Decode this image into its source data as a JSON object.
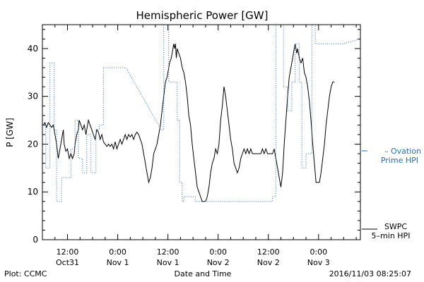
{
  "chart_data": {
    "type": "line",
    "title": "Hemispheric Power [GW]",
    "ylabel": "P [GW]",
    "xlabel": "Date and Time",
    "ylim": [
      0,
      45
    ],
    "y_ticks": [
      0,
      10,
      20,
      30,
      40
    ],
    "x_unit": "hours since 2016-10-31 00:00 UT",
    "xlim": [
      6,
      82
    ],
    "x_tick_labels": [
      {
        "x": 12,
        "line1": "12:00",
        "line2": "Oct31"
      },
      {
        "x": 24,
        "line1": "0:00",
        "line2": "Nov 1"
      },
      {
        "x": 36,
        "line1": "12:00",
        "line2": "Nov 1"
      },
      {
        "x": 48,
        "line1": "0:00",
        "line2": "Nov 2"
      },
      {
        "x": 60,
        "line1": "12:00",
        "line2": "Nov 2"
      },
      {
        "x": 72,
        "line1": "0:00",
        "line2": "Nov 3"
      }
    ],
    "x_minor_step": 3,
    "y_minor_step": 2,
    "footer_left": "Plot: CCMC",
    "footer_right": "2016/11/03 08:25:07",
    "series": [
      {
        "name": "SWPC 5-min HPI",
        "legend_lines": [
          "SWPC",
          "5–min HPI"
        ],
        "color": "#000000",
        "style": "solid",
        "points": [
          [
            6.2,
            24
          ],
          [
            6.6,
            24.5
          ],
          [
            7.0,
            23.5
          ],
          [
            7.4,
            24.5
          ],
          [
            7.8,
            24
          ],
          [
            8.2,
            23.5
          ],
          [
            8.6,
            24
          ],
          [
            9.0,
            22
          ],
          [
            9.4,
            20
          ],
          [
            9.8,
            17
          ],
          [
            10.2,
            19
          ],
          [
            10.6,
            21
          ],
          [
            11.0,
            23
          ],
          [
            11.2,
            20
          ],
          [
            11.6,
            18.5
          ],
          [
            12.0,
            19
          ],
          [
            12.4,
            17
          ],
          [
            12.8,
            18
          ],
          [
            13.2,
            17
          ],
          [
            13.6,
            18
          ],
          [
            13.8,
            20
          ],
          [
            14.2,
            22
          ],
          [
            14.6,
            23
          ],
          [
            14.8,
            25
          ],
          [
            15.2,
            24
          ],
          [
            15.6,
            23
          ],
          [
            16.0,
            24
          ],
          [
            16.4,
            22
          ],
          [
            16.8,
            24
          ],
          [
            17.0,
            25
          ],
          [
            17.4,
            24
          ],
          [
            17.8,
            23
          ],
          [
            18.2,
            22
          ],
          [
            18.6,
            21
          ],
          [
            19.0,
            23
          ],
          [
            19.4,
            22.5
          ],
          [
            19.8,
            21
          ],
          [
            20.2,
            22
          ],
          [
            20.6,
            20.5
          ],
          [
            21.0,
            20
          ],
          [
            21.4,
            19.5
          ],
          [
            21.8,
            20
          ],
          [
            22.2,
            19.5
          ],
          [
            22.6,
            20
          ],
          [
            23.0,
            19
          ],
          [
            23.4,
            20.5
          ],
          [
            23.8,
            19
          ],
          [
            24.2,
            20
          ],
          [
            24.6,
            21
          ],
          [
            25.0,
            20
          ],
          [
            25.4,
            21
          ],
          [
            25.8,
            22
          ],
          [
            26.2,
            21
          ],
          [
            26.6,
            22
          ],
          [
            27.0,
            21.5
          ],
          [
            27.4,
            22
          ],
          [
            27.8,
            21
          ],
          [
            28.2,
            22
          ],
          [
            28.6,
            22.5
          ],
          [
            29.0,
            22
          ],
          [
            29.4,
            21
          ],
          [
            29.8,
            20
          ],
          [
            30.2,
            18
          ],
          [
            30.6,
            16
          ],
          [
            31.0,
            14
          ],
          [
            31.4,
            12
          ],
          [
            31.8,
            13
          ],
          [
            32.2,
            15
          ],
          [
            32.6,
            18
          ],
          [
            33.0,
            19
          ],
          [
            33.4,
            20
          ],
          [
            33.8,
            22
          ],
          [
            34.2,
            24
          ],
          [
            34.6,
            27
          ],
          [
            35.0,
            30
          ],
          [
            35.4,
            33
          ],
          [
            35.8,
            34
          ],
          [
            36.0,
            35
          ],
          [
            36.4,
            37
          ],
          [
            36.8,
            38
          ],
          [
            37.0,
            39
          ],
          [
            37.4,
            41
          ],
          [
            37.6,
            40
          ],
          [
            37.8,
            41
          ],
          [
            38.0,
            38
          ],
          [
            38.2,
            40
          ],
          [
            38.6,
            39
          ],
          [
            39.0,
            38
          ],
          [
            39.4,
            36
          ],
          [
            39.8,
            35
          ],
          [
            40.2,
            33
          ],
          [
            40.6,
            30
          ],
          [
            41.0,
            26
          ],
          [
            41.4,
            24
          ],
          [
            41.8,
            20
          ],
          [
            42.2,
            17
          ],
          [
            42.6,
            14
          ],
          [
            43.0,
            11
          ],
          [
            43.4,
            10
          ],
          [
            43.8,
            9
          ],
          [
            44.2,
            8
          ],
          [
            44.6,
            8
          ],
          [
            45.0,
            8
          ],
          [
            45.4,
            9
          ],
          [
            45.8,
            11
          ],
          [
            46.2,
            14
          ],
          [
            46.6,
            16
          ],
          [
            47.0,
            17
          ],
          [
            47.4,
            19
          ],
          [
            47.8,
            18
          ],
          [
            48.2,
            20
          ],
          [
            48.6,
            25
          ],
          [
            49.0,
            28
          ],
          [
            49.4,
            32
          ],
          [
            49.6,
            31
          ],
          [
            49.8,
            30
          ],
          [
            50.2,
            27
          ],
          [
            50.6,
            24
          ],
          [
            51.0,
            21
          ],
          [
            51.4,
            19
          ],
          [
            51.8,
            16
          ],
          [
            52.2,
            15
          ],
          [
            52.6,
            14
          ],
          [
            53.0,
            15
          ],
          [
            53.4,
            17
          ],
          [
            53.8,
            18
          ],
          [
            54.2,
            19
          ],
          [
            54.6,
            18
          ],
          [
            55.0,
            19
          ],
          [
            55.4,
            18
          ],
          [
            55.8,
            19
          ],
          [
            56.2,
            18
          ],
          [
            56.6,
            18
          ],
          [
            57.0,
            18
          ],
          [
            57.4,
            18
          ],
          [
            57.8,
            18
          ],
          [
            58.2,
            18
          ],
          [
            58.6,
            19
          ],
          [
            59.0,
            18
          ],
          [
            59.4,
            19
          ],
          [
            59.8,
            18
          ],
          [
            60.2,
            18
          ],
          [
            60.6,
            18
          ],
          [
            61.0,
            18
          ],
          [
            61.4,
            19
          ],
          [
            61.8,
            17
          ],
          [
            62.2,
            15
          ],
          [
            62.6,
            13
          ],
          [
            63.0,
            11
          ],
          [
            63.4,
            14
          ],
          [
            63.8,
            20
          ],
          [
            64.2,
            25
          ],
          [
            64.6,
            30
          ],
          [
            65.0,
            34
          ],
          [
            65.4,
            36
          ],
          [
            65.8,
            38
          ],
          [
            66.2,
            40
          ],
          [
            66.4,
            41
          ],
          [
            66.6,
            40
          ],
          [
            66.8,
            39
          ],
          [
            67.0,
            40
          ],
          [
            67.4,
            38
          ],
          [
            67.8,
            37
          ],
          [
            68.2,
            38
          ],
          [
            68.6,
            35
          ],
          [
            69.0,
            34
          ],
          [
            69.4,
            32
          ],
          [
            69.8,
            29
          ],
          [
            70.2,
            25
          ],
          [
            70.6,
            20
          ],
          [
            71.0,
            16
          ],
          [
            71.4,
            12
          ],
          [
            71.8,
            12
          ],
          [
            72.2,
            12
          ],
          [
            72.6,
            14
          ],
          [
            73.0,
            17
          ],
          [
            73.4,
            20
          ],
          [
            73.8,
            24
          ],
          [
            74.2,
            27
          ],
          [
            74.6,
            30
          ],
          [
            75.0,
            32
          ],
          [
            75.4,
            33
          ],
          [
            75.8,
            33
          ]
        ]
      },
      {
        "name": "Ovation Prime HPI",
        "legend_lines": [
          "– Ovation",
          "Prime HPI"
        ],
        "color": "#2a6fbd",
        "style": "dotted",
        "points": [
          [
            6.2,
            24
          ],
          [
            6.8,
            24
          ],
          [
            6.8,
            15
          ],
          [
            7.8,
            15
          ],
          [
            7.8,
            37
          ],
          [
            8.8,
            37
          ],
          [
            8.8,
            23
          ],
          [
            9.4,
            23
          ],
          [
            9.4,
            8
          ],
          [
            10.6,
            8
          ],
          [
            10.6,
            13
          ],
          [
            12.8,
            13
          ],
          [
            12.8,
            19
          ],
          [
            13.8,
            19
          ],
          [
            13.8,
            25
          ],
          [
            14.6,
            25
          ],
          [
            14.6,
            17
          ],
          [
            15.6,
            17
          ],
          [
            15.6,
            14
          ],
          [
            16.6,
            14
          ],
          [
            16.6,
            22
          ],
          [
            17.6,
            22
          ],
          [
            17.6,
            14
          ],
          [
            18.8,
            14
          ],
          [
            18.8,
            23
          ],
          [
            19.6,
            23
          ],
          [
            19.6,
            24
          ],
          [
            20.6,
            24
          ],
          [
            20.6,
            36
          ],
          [
            26.0,
            36
          ],
          [
            34.4,
            23
          ],
          [
            35.0,
            23
          ],
          [
            35.0,
            45
          ],
          [
            36.2,
            45
          ],
          [
            36.2,
            33
          ],
          [
            38.2,
            33
          ],
          [
            38.2,
            25
          ],
          [
            38.8,
            25
          ],
          [
            38.8,
            12
          ],
          [
            39.4,
            12
          ],
          [
            39.4,
            8
          ],
          [
            39.8,
            8
          ],
          [
            39.8,
            9
          ],
          [
            42.6,
            9
          ],
          [
            42.6,
            8
          ],
          [
            61.0,
            8
          ],
          [
            61.0,
            9
          ],
          [
            61.8,
            9
          ],
          [
            61.8,
            45
          ],
          [
            63.6,
            45
          ],
          [
            63.6,
            32
          ],
          [
            64.6,
            32
          ],
          [
            64.6,
            27
          ],
          [
            65.6,
            27
          ],
          [
            65.6,
            33
          ],
          [
            66.4,
            33
          ],
          [
            66.4,
            41
          ],
          [
            67.4,
            41
          ],
          [
            67.4,
            33
          ],
          [
            68.0,
            33
          ],
          [
            68.0,
            15
          ],
          [
            69.0,
            15
          ],
          [
            69.0,
            18
          ],
          [
            70.4,
            18
          ],
          [
            70.4,
            45
          ],
          [
            71.2,
            45
          ],
          [
            71.2,
            41
          ],
          [
            77.8,
            41
          ],
          [
            82,
            42
          ]
        ]
      }
    ]
  }
}
